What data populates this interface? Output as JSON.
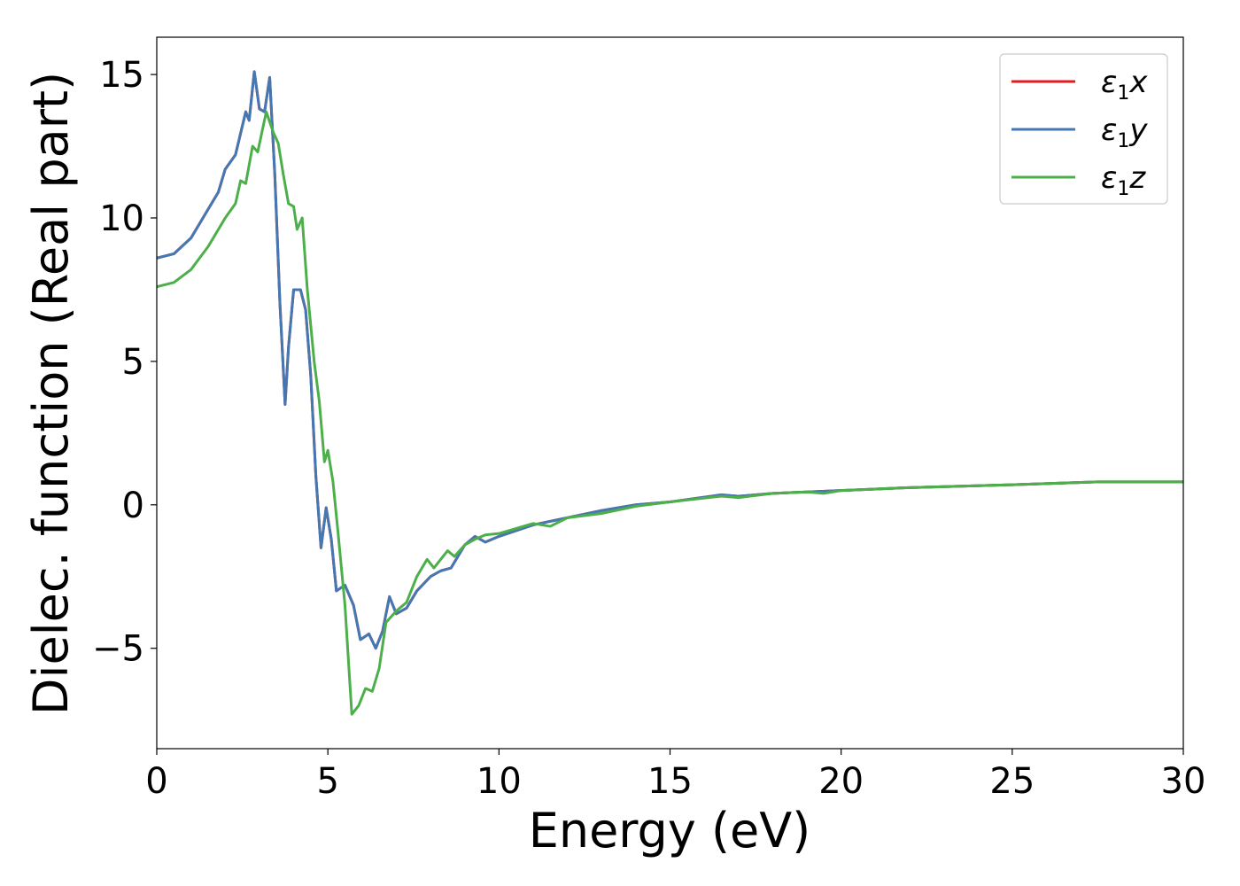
{
  "chart_data": {
    "type": "line",
    "xlabel": "Energy (eV)",
    "ylabel": "Dielec. function (Real part)",
    "xlim": [
      0,
      30
    ],
    "ylim": [
      -8.5,
      16.3
    ],
    "xticks": [
      0,
      5,
      10,
      15,
      20,
      25,
      30
    ],
    "yticks": [
      -5,
      0,
      5,
      10,
      15
    ],
    "ytick_labels": [
      "−5",
      "0",
      "5",
      "10",
      "15"
    ],
    "grid": false,
    "legend_position": "top-right",
    "series": [
      {
        "name": "x",
        "legend": {
          "prefix": "ε",
          "sub": "1",
          "suffix": "x"
        },
        "color": "#e41a1c",
        "points": [
          [
            0,
            8.6
          ],
          [
            0.5,
            8.75
          ],
          [
            1.0,
            9.3
          ],
          [
            1.5,
            10.3
          ],
          [
            1.8,
            10.9
          ],
          [
            2.0,
            11.7
          ],
          [
            2.3,
            12.2
          ],
          [
            2.5,
            13.2
          ],
          [
            2.6,
            13.7
          ],
          [
            2.7,
            13.4
          ],
          [
            2.85,
            15.1
          ],
          [
            3.0,
            13.8
          ],
          [
            3.15,
            13.7
          ],
          [
            3.3,
            14.9
          ],
          [
            3.45,
            11.5
          ],
          [
            3.6,
            7.0
          ],
          [
            3.75,
            3.5
          ],
          [
            3.85,
            5.5
          ],
          [
            4.0,
            7.5
          ],
          [
            4.2,
            7.5
          ],
          [
            4.35,
            6.8
          ],
          [
            4.5,
            4.5
          ],
          [
            4.65,
            1.0
          ],
          [
            4.8,
            -1.5
          ],
          [
            4.95,
            -0.1
          ],
          [
            5.1,
            -1.2
          ],
          [
            5.25,
            -3.0
          ],
          [
            5.5,
            -2.8
          ],
          [
            5.75,
            -3.5
          ],
          [
            5.95,
            -4.7
          ],
          [
            6.2,
            -4.5
          ],
          [
            6.4,
            -5.0
          ],
          [
            6.6,
            -4.4
          ],
          [
            6.8,
            -3.2
          ],
          [
            7.0,
            -3.8
          ],
          [
            7.3,
            -3.6
          ],
          [
            7.6,
            -3.0
          ],
          [
            8.0,
            -2.5
          ],
          [
            8.3,
            -2.3
          ],
          [
            8.6,
            -2.2
          ],
          [
            9.0,
            -1.4
          ],
          [
            9.3,
            -1.1
          ],
          [
            9.6,
            -1.3
          ],
          [
            10.0,
            -1.1
          ],
          [
            11.0,
            -0.7
          ],
          [
            12.0,
            -0.45
          ],
          [
            13.0,
            -0.2
          ],
          [
            14.0,
            0.0
          ],
          [
            15.0,
            0.1
          ],
          [
            16.5,
            0.35
          ],
          [
            17.0,
            0.3
          ],
          [
            18.0,
            0.4
          ],
          [
            19.0,
            0.45
          ],
          [
            20.0,
            0.5
          ],
          [
            21.0,
            0.55
          ],
          [
            22.0,
            0.6
          ],
          [
            25.0,
            0.7
          ],
          [
            27.5,
            0.8
          ],
          [
            30.0,
            0.8
          ]
        ]
      },
      {
        "name": "y",
        "legend": {
          "prefix": "ε",
          "sub": "1",
          "suffix": "y"
        },
        "color": "#4378b3",
        "points": [
          [
            0,
            8.6
          ],
          [
            0.5,
            8.75
          ],
          [
            1.0,
            9.3
          ],
          [
            1.5,
            10.3
          ],
          [
            1.8,
            10.9
          ],
          [
            2.0,
            11.7
          ],
          [
            2.3,
            12.2
          ],
          [
            2.5,
            13.2
          ],
          [
            2.6,
            13.7
          ],
          [
            2.7,
            13.4
          ],
          [
            2.85,
            15.1
          ],
          [
            3.0,
            13.8
          ],
          [
            3.15,
            13.7
          ],
          [
            3.3,
            14.9
          ],
          [
            3.45,
            11.5
          ],
          [
            3.6,
            7.0
          ],
          [
            3.75,
            3.5
          ],
          [
            3.85,
            5.5
          ],
          [
            4.0,
            7.5
          ],
          [
            4.2,
            7.5
          ],
          [
            4.35,
            6.8
          ],
          [
            4.5,
            4.5
          ],
          [
            4.65,
            1.0
          ],
          [
            4.8,
            -1.5
          ],
          [
            4.95,
            -0.1
          ],
          [
            5.1,
            -1.2
          ],
          [
            5.25,
            -3.0
          ],
          [
            5.5,
            -2.8
          ],
          [
            5.75,
            -3.5
          ],
          [
            5.95,
            -4.7
          ],
          [
            6.2,
            -4.5
          ],
          [
            6.4,
            -5.0
          ],
          [
            6.6,
            -4.4
          ],
          [
            6.8,
            -3.2
          ],
          [
            7.0,
            -3.8
          ],
          [
            7.3,
            -3.6
          ],
          [
            7.6,
            -3.0
          ],
          [
            8.0,
            -2.5
          ],
          [
            8.3,
            -2.3
          ],
          [
            8.6,
            -2.2
          ],
          [
            9.0,
            -1.4
          ],
          [
            9.3,
            -1.1
          ],
          [
            9.6,
            -1.3
          ],
          [
            10.0,
            -1.1
          ],
          [
            11.0,
            -0.7
          ],
          [
            12.0,
            -0.45
          ],
          [
            13.0,
            -0.2
          ],
          [
            14.0,
            0.0
          ],
          [
            15.0,
            0.1
          ],
          [
            16.5,
            0.35
          ],
          [
            17.0,
            0.3
          ],
          [
            18.0,
            0.4
          ],
          [
            19.0,
            0.45
          ],
          [
            20.0,
            0.5
          ],
          [
            21.0,
            0.55
          ],
          [
            22.0,
            0.6
          ],
          [
            25.0,
            0.7
          ],
          [
            27.5,
            0.8
          ],
          [
            30.0,
            0.8
          ]
        ]
      },
      {
        "name": "z",
        "legend": {
          "prefix": "ε",
          "sub": "1",
          "suffix": "z"
        },
        "color": "#4daf4a",
        "points": [
          [
            0,
            7.6
          ],
          [
            0.5,
            7.75
          ],
          [
            1.0,
            8.2
          ],
          [
            1.5,
            9.0
          ],
          [
            2.0,
            10.0
          ],
          [
            2.3,
            10.5
          ],
          [
            2.45,
            11.3
          ],
          [
            2.6,
            11.2
          ],
          [
            2.8,
            12.5
          ],
          [
            2.95,
            12.3
          ],
          [
            3.2,
            13.7
          ],
          [
            3.4,
            13.0
          ],
          [
            3.55,
            12.6
          ],
          [
            3.7,
            11.5
          ],
          [
            3.85,
            10.5
          ],
          [
            4.0,
            10.4
          ],
          [
            4.1,
            9.6
          ],
          [
            4.25,
            10.0
          ],
          [
            4.4,
            7.5
          ],
          [
            4.6,
            5.0
          ],
          [
            4.75,
            3.6
          ],
          [
            4.9,
            1.5
          ],
          [
            5.0,
            1.9
          ],
          [
            5.15,
            0.8
          ],
          [
            5.3,
            -1.0
          ],
          [
            5.5,
            -3.5
          ],
          [
            5.7,
            -7.3
          ],
          [
            5.9,
            -7.0
          ],
          [
            6.1,
            -6.4
          ],
          [
            6.3,
            -6.5
          ],
          [
            6.5,
            -5.7
          ],
          [
            6.7,
            -4.1
          ],
          [
            7.0,
            -3.7
          ],
          [
            7.3,
            -3.4
          ],
          [
            7.6,
            -2.5
          ],
          [
            7.9,
            -1.9
          ],
          [
            8.1,
            -2.2
          ],
          [
            8.5,
            -1.6
          ],
          [
            8.7,
            -1.8
          ],
          [
            9.0,
            -1.4
          ],
          [
            9.3,
            -1.2
          ],
          [
            9.6,
            -1.05
          ],
          [
            10.0,
            -1.0
          ],
          [
            11.0,
            -0.65
          ],
          [
            11.5,
            -0.75
          ],
          [
            12.0,
            -0.45
          ],
          [
            13.0,
            -0.3
          ],
          [
            14.0,
            -0.05
          ],
          [
            15.0,
            0.1
          ],
          [
            16.5,
            0.3
          ],
          [
            17.0,
            0.25
          ],
          [
            18.0,
            0.4
          ],
          [
            19.0,
            0.45
          ],
          [
            19.5,
            0.4
          ],
          [
            20.0,
            0.5
          ],
          [
            21.0,
            0.55
          ],
          [
            22.0,
            0.6
          ],
          [
            25.0,
            0.7
          ],
          [
            27.5,
            0.8
          ],
          [
            30.0,
            0.8
          ]
        ]
      }
    ]
  }
}
